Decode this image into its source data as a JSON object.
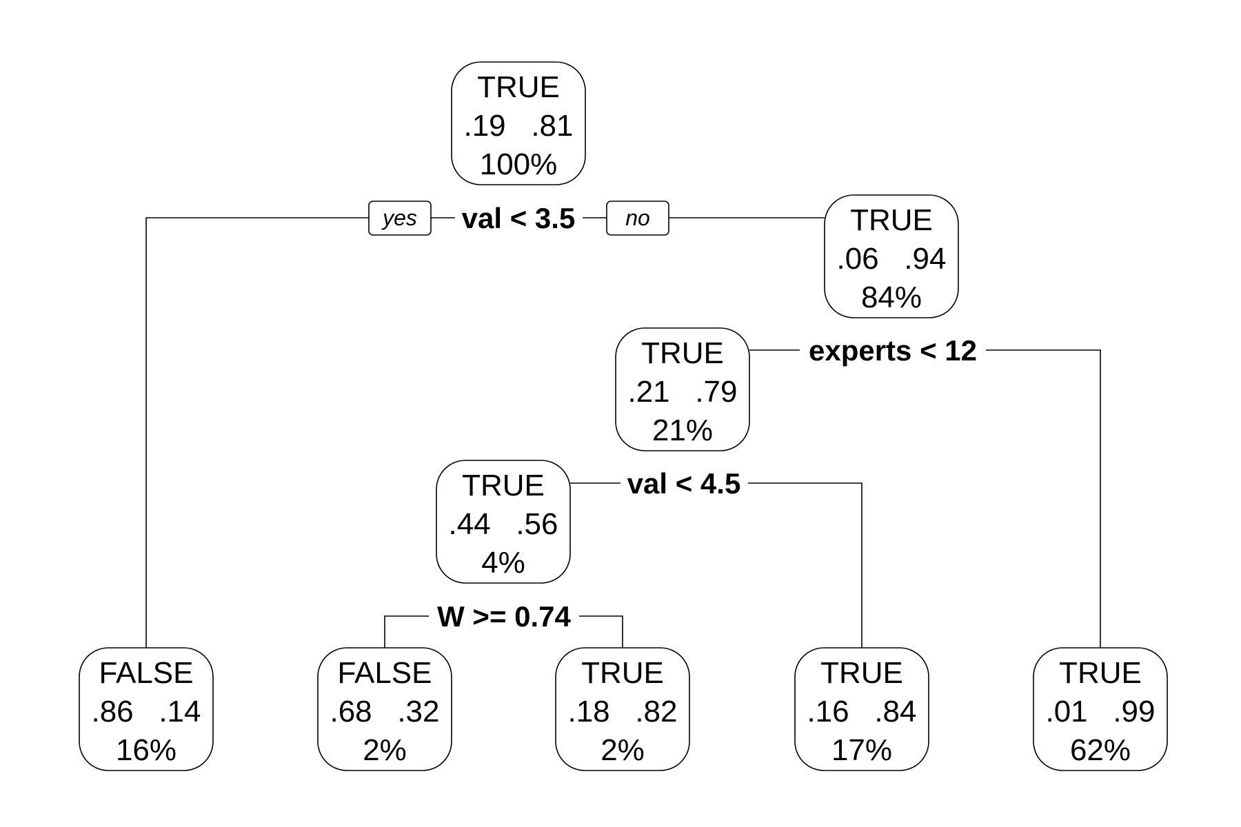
{
  "nodes": [
    {
      "id": "n1",
      "class_label": "TRUE",
      "probs": ".19   .81",
      "share": "100%"
    },
    {
      "id": "n3",
      "class_label": "TRUE",
      "probs": ".06   .94",
      "share": "84%"
    },
    {
      "id": "n6",
      "class_label": "TRUE",
      "probs": ".21   .79",
      "share": "21%"
    },
    {
      "id": "n12",
      "class_label": "TRUE",
      "probs": ".44   .56",
      "share": "4%"
    },
    {
      "id": "n2",
      "class_label": "FALSE",
      "probs": ".86   .14",
      "share": "16%"
    },
    {
      "id": "n24",
      "class_label": "FALSE",
      "probs": ".68   .32",
      "share": "2%"
    },
    {
      "id": "n25",
      "class_label": "TRUE",
      "probs": ".18   .82",
      "share": "2%"
    },
    {
      "id": "n13",
      "class_label": "TRUE",
      "probs": ".16   .84",
      "share": "17%"
    },
    {
      "id": "n7",
      "class_label": "TRUE",
      "probs": ".01   .99",
      "share": "62%"
    }
  ],
  "splits": [
    {
      "id": "s1",
      "label": "val < 3.5"
    },
    {
      "id": "s2",
      "label": "experts < 12"
    },
    {
      "id": "s3",
      "label": "val < 4.5"
    },
    {
      "id": "s4",
      "label": "W >= 0.74"
    }
  ],
  "branch_labels": {
    "yes": "yes",
    "no": "no"
  },
  "colors": {
    "stroke": "#000000",
    "background": "#ffffff"
  }
}
